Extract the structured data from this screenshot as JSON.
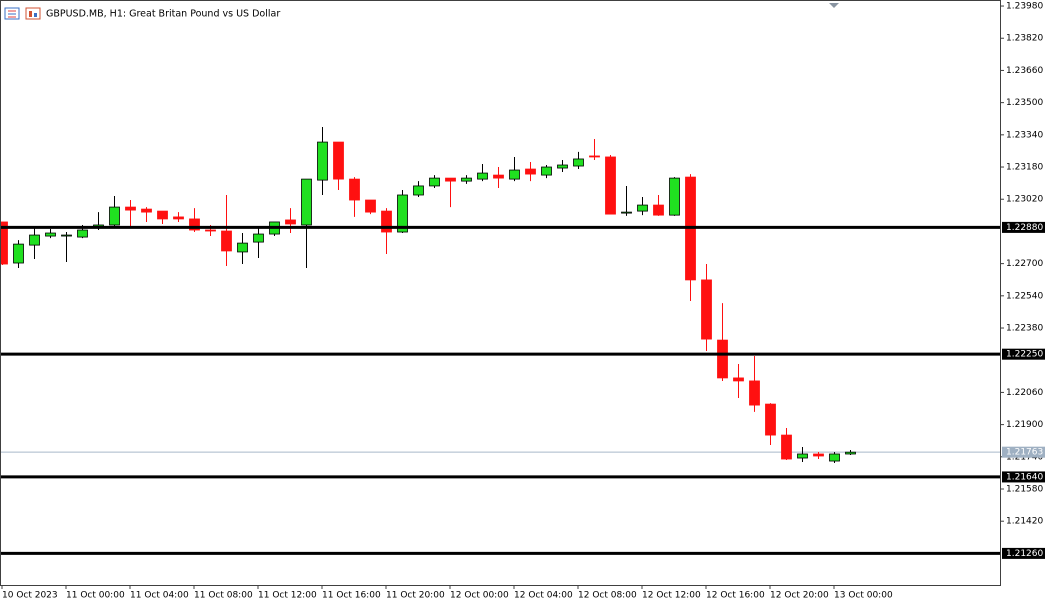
{
  "chart_data": {
    "type": "candlestick",
    "title": "GBPUSD.MB, H1:  Great Britan Pound vs US Dollar",
    "categories": [
      "10 Oct 2023",
      null,
      null,
      null,
      "11 Oct 00:00",
      null,
      null,
      null,
      "11 Oct 04:00",
      null,
      null,
      null,
      "11 Oct 08:00",
      null,
      null,
      null,
      "11 Oct 12:00",
      null,
      null,
      null,
      "11 Oct 16:00",
      null,
      null,
      null,
      "11 Oct 20:00",
      null,
      null,
      null,
      "12 Oct 00:00",
      null,
      null,
      null,
      "12 Oct 04:00",
      null,
      null,
      null,
      "12 Oct 08:00",
      null,
      null,
      null,
      "12 Oct 12:00",
      null,
      null,
      null,
      "12 Oct 16:00",
      null,
      null,
      null,
      "12 Oct 20:00",
      null,
      null,
      null,
      "13 Oct 00:00",
      null
    ],
    "open": [
      1.22907,
      1.22703,
      1.22792,
      1.22837,
      1.22837,
      1.22832,
      1.22877,
      1.22892,
      1.22981,
      1.22971,
      1.22961,
      1.22932,
      1.22922,
      1.22867,
      1.22862,
      1.22758,
      1.22807,
      1.22847,
      1.22917,
      1.22892,
      1.23115,
      1.23304,
      1.2312,
      1.23016,
      1.22961,
      1.22857,
      1.23041,
      1.23086,
      1.23125,
      1.2311,
      1.2312,
      1.2314,
      1.2312,
      1.2317,
      1.2314,
      1.23175,
      1.23185,
      1.23235,
      1.2323,
      1.22951,
      1.22961,
      1.22991,
      1.22941,
      1.2313,
      1.22619,
      1.2232,
      1.22132,
      1.22117,
      1.22002,
      1.21848,
      1.21734,
      1.21754,
      1.21719,
      1.21754
    ],
    "high": [
      1.22907,
      1.22817,
      1.22877,
      1.22872,
      1.22857,
      1.22892,
      1.22956,
      1.23036,
      1.23016,
      1.22981,
      1.22961,
      1.22956,
      1.22976,
      1.22892,
      1.23041,
      1.22852,
      1.22887,
      1.22907,
      1.22976,
      1.2312,
      1.23379,
      1.23304,
      1.2313,
      1.23016,
      1.22976,
      1.23066,
      1.2311,
      1.2314,
      1.23125,
      1.2314,
      1.23195,
      1.2318,
      1.2323,
      1.23205,
      1.2319,
      1.23215,
      1.23255,
      1.23319,
      1.2324,
      1.23086,
      1.23031,
      1.23041,
      1.2313,
      1.23145,
      1.22698,
      1.22504,
      1.22201,
      1.22241,
      1.22007,
      1.21883,
      1.21789,
      1.21764,
      1.21764,
      1.21774
    ],
    "low": [
      1.22693,
      1.22678,
      1.22723,
      1.22827,
      1.22708,
      1.22827,
      1.22867,
      1.22887,
      1.22887,
      1.22907,
      1.22897,
      1.22907,
      1.22857,
      1.22837,
      1.22688,
      1.22698,
      1.22728,
      1.22837,
      1.22852,
      1.22678,
      1.23041,
      1.23066,
      1.22932,
      1.22946,
      1.22748,
      1.22852,
      1.23031,
      1.23076,
      1.22981,
      1.23096,
      1.2311,
      1.23076,
      1.2311,
      1.2311,
      1.23125,
      1.23155,
      1.2317,
      1.23215,
      1.22946,
      1.22937,
      1.22941,
      1.22937,
      1.22937,
      1.22514,
      1.22266,
      1.22117,
      1.22032,
      1.21963,
      1.21799,
      1.21724,
      1.21714,
      1.21729,
      1.21709,
      1.21749
    ],
    "close": [
      1.22698,
      1.22797,
      1.22842,
      1.22852,
      1.22842,
      1.22867,
      1.22892,
      1.22981,
      1.22966,
      1.22956,
      1.22922,
      1.22922,
      1.22867,
      1.22862,
      1.22763,
      1.22802,
      1.22847,
      1.22907,
      1.22897,
      1.2312,
      1.23304,
      1.2312,
      1.23016,
      1.22956,
      1.22857,
      1.23041,
      1.23086,
      1.23125,
      1.2311,
      1.23125,
      1.2315,
      1.23125,
      1.23165,
      1.23145,
      1.2318,
      1.2319,
      1.2322,
      1.2323,
      1.22946,
      1.22956,
      1.22991,
      1.22941,
      1.23125,
      1.22619,
      1.22325,
      1.22132,
      1.22117,
      1.21997,
      1.21848,
      1.21729,
      1.21754,
      1.21744,
      1.21754,
      1.21763
    ],
    "up_color": "#20e020",
    "down_color": "#ff1010",
    "ylim": [
      1.21103,
      1.2401
    ],
    "yticks": [
      {
        "value": 1.2398,
        "label": "1.23980"
      },
      {
        "value": 1.2382,
        "label": "1.23820"
      },
      {
        "value": 1.2366,
        "label": "1.23660"
      },
      {
        "value": 1.235,
        "label": "1.23500"
      },
      {
        "value": 1.2334,
        "label": "1.23340"
      },
      {
        "value": 1.2318,
        "label": "1.23180"
      },
      {
        "value": 1.2302,
        "label": "1.23020"
      },
      {
        "value": 1.227,
        "label": "1.22700"
      },
      {
        "value": 1.2254,
        "label": "1.22540"
      },
      {
        "value": 1.2238,
        "label": "1.22380"
      },
      {
        "value": 1.2206,
        "label": "1.22060"
      },
      {
        "value": 1.219,
        "label": "1.21900"
      },
      {
        "value": 1.2174,
        "label": "1.21740"
      },
      {
        "value": 1.2158,
        "label": "1.21580"
      },
      {
        "value": 1.2142,
        "label": "1.21420"
      }
    ],
    "hlines": [
      {
        "value": 1.2288,
        "label": "1.22880"
      },
      {
        "value": 1.2225,
        "label": "1.22250"
      },
      {
        "value": 1.2164,
        "label": "1.21640"
      },
      {
        "value": 1.2126,
        "label": "1.21260"
      }
    ],
    "current_price": {
      "value": 1.21763,
      "label": "1.21763"
    },
    "grid": false
  }
}
